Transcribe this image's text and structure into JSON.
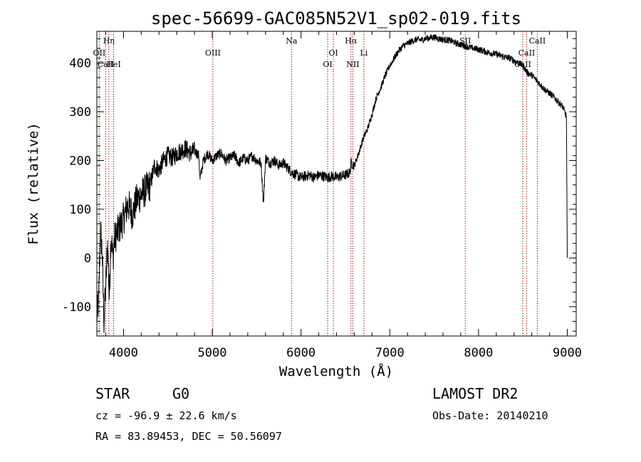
{
  "chart_data": {
    "type": "line",
    "title": "spec-56699-GAC085N52V1_sp02-019.fits",
    "xlabel": "Wavelength (Å)",
    "ylabel": "Flux (relative)",
    "xlim": [
      3700,
      9100
    ],
    "ylim": [
      -160,
      465
    ],
    "xticks": [
      4000,
      5000,
      6000,
      7000,
      8000,
      9000
    ],
    "yticks": [
      -100,
      0,
      100,
      200,
      300,
      400
    ],
    "grid": false,
    "series": [
      {
        "x": [
          3700,
          3720,
          3740,
          3760,
          3780,
          3800,
          3820,
          3840,
          3860,
          3880,
          3900,
          3950,
          4000,
          4050,
          4100,
          4150,
          4200,
          4250,
          4300,
          4350,
          4400,
          4450,
          4500,
          4550,
          4600,
          4650,
          4700,
          4750,
          4800,
          4850,
          4861,
          4900,
          4950,
          5000,
          5050,
          5100,
          5150,
          5200,
          5250,
          5300,
          5350,
          5400,
          5450,
          5500,
          5550,
          5577,
          5600,
          5650,
          5700,
          5750,
          5800,
          5850,
          5900,
          5950,
          6000,
          6050,
          6100,
          6150,
          6200,
          6250,
          6300,
          6350,
          6400,
          6450,
          6500,
          6550,
          6563,
          6600,
          6650,
          6700,
          6750,
          6800,
          6850,
          6900,
          6950,
          7000,
          7050,
          7100,
          7150,
          7200,
          7250,
          7300,
          7350,
          7400,
          7450,
          7500,
          7550,
          7600,
          7650,
          7700,
          7750,
          7800,
          7850,
          7900,
          7950,
          8000,
          8050,
          8100,
          8150,
          8200,
          8250,
          8300,
          8350,
          8400,
          8450,
          8500,
          8550,
          8600,
          8650,
          8700,
          8750,
          8800,
          8850,
          8900,
          8950,
          8990,
          9000
        ],
        "y": [
          -120,
          -90,
          60,
          10,
          -130,
          -60,
          30,
          -80,
          50,
          0,
          40,
          60,
          80,
          110,
          90,
          120,
          130,
          140,
          150,
          190,
          180,
          200,
          210,
          205,
          215,
          220,
          225,
          215,
          220,
          210,
          160,
          200,
          215,
          200,
          210,
          215,
          200,
          205,
          210,
          195,
          205,
          200,
          210,
          200,
          195,
          110,
          205,
          195,
          200,
          190,
          195,
          185,
          175,
          170,
          165,
          168,
          170,
          165,
          170,
          168,
          165,
          168,
          165,
          168,
          170,
          175,
          195,
          190,
          215,
          245,
          265,
          295,
          330,
          350,
          375,
          395,
          410,
          425,
          435,
          440,
          445,
          448,
          447,
          450,
          452,
          453,
          450,
          448,
          447,
          445,
          440,
          438,
          435,
          432,
          430,
          428,
          425,
          422,
          420,
          418,
          415,
          412,
          410,
          405,
          400,
          395,
          380,
          375,
          365,
          355,
          345,
          338,
          330,
          320,
          310,
          290,
          0
        ]
      }
    ],
    "line_markers": [
      {
        "label": "Hη",
        "x": 3835,
        "row": 0
      },
      {
        "label": "OII",
        "x": 3727,
        "row": 1
      },
      {
        "label": "HeI",
        "x": 3889,
        "row": 2
      },
      {
        "label": "CaII",
        "x": 3800,
        "row": 2
      },
      {
        "label": "OIII",
        "x": 5007,
        "row": 1
      },
      {
        "label": "Na",
        "x": 5893,
        "row": 0
      },
      {
        "label": "OI",
        "x": 6364,
        "row": 1
      },
      {
        "label": "OI",
        "x": 6300,
        "row": 2
      },
      {
        "label": "Hα",
        "x": 6563,
        "row": 0
      },
      {
        "label": "NII",
        "x": 6584,
        "row": 2
      },
      {
        "label": "Li",
        "x": 6708,
        "row": 1
      },
      {
        "label": "SII",
        "x": 7850,
        "row": 0
      },
      {
        "label": "CaII",
        "x": 8662,
        "row": 0
      },
      {
        "label": "CaII",
        "x": 8542,
        "row": 1
      },
      {
        "label": "CaII",
        "x": 8498,
        "row": 2
      }
    ]
  },
  "info": {
    "class_label": "STAR",
    "subclass": "G0",
    "survey": "LAMOST DR2",
    "redshift": "cz = -96.9 ± 22.6 km/s",
    "obs_date": "Obs-Date: 20140210",
    "coords": "RA =  83.89453, DEC =  50.56097"
  }
}
